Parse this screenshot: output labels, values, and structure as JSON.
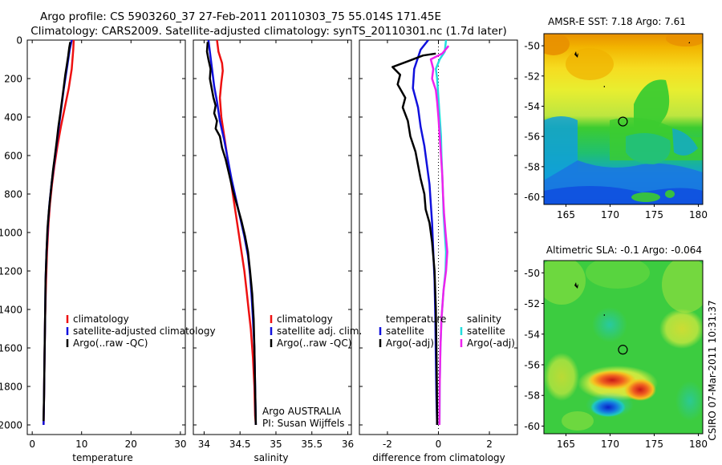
{
  "header": {
    "line1": "Argo profile: CS 5903260_37 27-Feb-2011 20110303_75 55.014S 171.45E",
    "line2": "Climatology: CARS2009. Satellite-adjusted climatology: synTS_20110301.nc (1.7d later)"
  },
  "colors": {
    "climatology": "#ee1111",
    "satellite": "#1111dd",
    "argo": "#000000",
    "sat_diff_sal": "#22dddd",
    "argo_diff_sal": "#ee22ee"
  },
  "chart_data": [
    {
      "type": "line",
      "panel": "temperature",
      "xlabel": "temperature",
      "xlim": [
        -1,
        31
      ],
      "ylim": [
        0,
        2050
      ],
      "y_reversed": true,
      "xticks": [
        "0",
        "10",
        "20",
        "30"
      ],
      "yticks": [
        "0",
        "200",
        "400",
        "600",
        "800",
        "1000",
        "1200",
        "1400",
        "1600",
        "1800",
        "2000"
      ],
      "legend": {
        "placement": "bottom-right",
        "entries": [
          "climatology",
          "satellite-adjusted climatology",
          "Argo(..raw -QC)"
        ]
      },
      "series": [
        {
          "name": "climatology",
          "color_key": "climatology",
          "points": [
            [
              8.4,
              0
            ],
            [
              8.3,
              50
            ],
            [
              8.0,
              150
            ],
            [
              7.4,
              250
            ],
            [
              6.6,
              350
            ],
            [
              5.8,
              450
            ],
            [
              5.1,
              550
            ],
            [
              4.5,
              650
            ],
            [
              4.0,
              750
            ],
            [
              3.6,
              850
            ],
            [
              3.3,
              950
            ],
            [
              3.0,
              1100
            ],
            [
              2.8,
              1250
            ],
            [
              2.6,
              1450
            ],
            [
              2.5,
              1650
            ],
            [
              2.4,
              1850
            ],
            [
              2.3,
              2000
            ]
          ]
        },
        {
          "name": "satellite-adjusted climatology",
          "color_key": "satellite",
          "points": [
            [
              8.0,
              0
            ],
            [
              7.6,
              50
            ],
            [
              7.0,
              150
            ],
            [
              6.4,
              250
            ],
            [
              5.9,
              350
            ],
            [
              5.4,
              450
            ],
            [
              4.9,
              550
            ],
            [
              4.4,
              650
            ],
            [
              3.9,
              750
            ],
            [
              3.5,
              850
            ],
            [
              3.2,
              950
            ],
            [
              2.9,
              1100
            ],
            [
              2.7,
              1250
            ],
            [
              2.6,
              1450
            ],
            [
              2.5,
              1650
            ],
            [
              2.4,
              1850
            ],
            [
              2.3,
              2000
            ]
          ]
        },
        {
          "name": "Argo(..raw -QC)",
          "color_key": "argo",
          "points": [
            [
              7.7,
              10
            ],
            [
              7.5,
              40
            ],
            [
              7.3,
              80
            ],
            [
              7.0,
              130
            ],
            [
              6.7,
              180
            ],
            [
              6.4,
              240
            ],
            [
              6.0,
              320
            ],
            [
              5.7,
              380
            ],
            [
              5.3,
              450
            ],
            [
              5.0,
              520
            ],
            [
              4.6,
              600
            ],
            [
              4.2,
              680
            ],
            [
              3.8,
              780
            ],
            [
              3.4,
              880
            ],
            [
              3.1,
              980
            ],
            [
              2.9,
              1100
            ],
            [
              2.7,
              1250
            ],
            [
              2.6,
              1450
            ],
            [
              2.5,
              1650
            ],
            [
              2.4,
              1850
            ],
            [
              2.3,
              1980
            ]
          ]
        }
      ]
    },
    {
      "type": "line",
      "panel": "salinity",
      "xlabel": "salinity",
      "xlim": [
        33.85,
        36.05
      ],
      "ylim": [
        0,
        2050
      ],
      "y_reversed": true,
      "xticks": [
        "34",
        "34.5",
        "35",
        "35.5",
        "36"
      ],
      "legend": {
        "placement": "bottom-right",
        "entries": [
          "climatology",
          "satellite adj. clim.",
          "Argo(..raw -QC)"
        ]
      },
      "annotation": {
        "line1": "Argo AUSTRALIA",
        "line2": "PI: Susan Wijffels"
      },
      "series": [
        {
          "name": "climatology",
          "color_key": "climatology",
          "points": [
            [
              34.18,
              0
            ],
            [
              34.2,
              60
            ],
            [
              34.25,
              120
            ],
            [
              34.26,
              160
            ],
            [
              34.24,
              220
            ],
            [
              34.22,
              300
            ],
            [
              34.24,
              400
            ],
            [
              34.28,
              500
            ],
            [
              34.32,
              600
            ],
            [
              34.36,
              700
            ],
            [
              34.4,
              800
            ],
            [
              34.44,
              900
            ],
            [
              34.48,
              1000
            ],
            [
              34.52,
              1100
            ],
            [
              34.56,
              1200
            ],
            [
              34.59,
              1300
            ],
            [
              34.62,
              1400
            ],
            [
              34.65,
              1500
            ],
            [
              34.68,
              1650
            ],
            [
              34.7,
              1800
            ],
            [
              34.71,
              1950
            ],
            [
              34.72,
              2000
            ]
          ]
        },
        {
          "name": "satellite adj. clim.",
          "color_key": "satellite",
          "points": [
            [
              34.06,
              0
            ],
            [
              34.08,
              60
            ],
            [
              34.1,
              120
            ],
            [
              34.12,
              180
            ],
            [
              34.14,
              240
            ],
            [
              34.18,
              320
            ],
            [
              34.22,
              420
            ],
            [
              34.28,
              520
            ],
            [
              34.33,
              620
            ],
            [
              34.38,
              720
            ],
            [
              34.44,
              820
            ],
            [
              34.5,
              920
            ],
            [
              34.56,
              1020
            ],
            [
              34.61,
              1120
            ],
            [
              34.64,
              1220
            ],
            [
              34.66,
              1320
            ],
            [
              34.68,
              1450
            ],
            [
              34.7,
              1600
            ],
            [
              34.71,
              1800
            ],
            [
              34.72,
              2000
            ]
          ]
        },
        {
          "name": "Argo(..raw -QC)",
          "color_key": "argo",
          "points": [
            [
              34.05,
              10
            ],
            [
              34.04,
              60
            ],
            [
              34.06,
              100
            ],
            [
              34.09,
              150
            ],
            [
              34.08,
              200
            ],
            [
              34.11,
              260
            ],
            [
              34.13,
              300
            ],
            [
              34.16,
              340
            ],
            [
              34.14,
              380
            ],
            [
              34.18,
              420
            ],
            [
              34.16,
              460
            ],
            [
              34.22,
              500
            ],
            [
              34.25,
              560
            ],
            [
              34.3,
              620
            ],
            [
              34.35,
              700
            ],
            [
              34.4,
              780
            ],
            [
              34.46,
              860
            ],
            [
              34.52,
              940
            ],
            [
              34.57,
              1020
            ],
            [
              34.61,
              1100
            ],
            [
              34.64,
              1200
            ],
            [
              34.67,
              1320
            ],
            [
              34.69,
              1450
            ],
            [
              34.7,
              1600
            ],
            [
              34.71,
              1800
            ],
            [
              34.72,
              2000
            ]
          ]
        }
      ]
    },
    {
      "type": "line",
      "panel": "difference",
      "xlabel": "difference from climatology",
      "xlim": [
        -3.1,
        3.1
      ],
      "ylim": [
        0,
        2050
      ],
      "y_reversed": true,
      "xticks": [
        "-2",
        "0",
        "2"
      ],
      "zero_line": true,
      "legend_temperature": {
        "title": "temperature",
        "entries": [
          "satellite",
          "Argo(-adj)"
        ]
      },
      "legend_salinity": {
        "title": "salinity",
        "entries": [
          "satellite",
          "Argo(-adj)"
        ]
      },
      "series": [
        {
          "name": "temperature satellite",
          "color_key": "satellite",
          "points": [
            [
              -0.4,
              0
            ],
            [
              -0.7,
              50
            ],
            [
              -0.95,
              150
            ],
            [
              -1.0,
              250
            ],
            [
              -0.8,
              350
            ],
            [
              -0.7,
              450
            ],
            [
              -0.55,
              550
            ],
            [
              -0.45,
              650
            ],
            [
              -0.35,
              750
            ],
            [
              -0.3,
              850
            ],
            [
              -0.25,
              950
            ],
            [
              -0.2,
              1100
            ],
            [
              -0.15,
              1250
            ],
            [
              -0.12,
              1450
            ],
            [
              -0.1,
              1650
            ],
            [
              -0.08,
              1850
            ],
            [
              -0.05,
              2000
            ]
          ]
        },
        {
          "name": "temperature Argo(-adj)",
          "color_key": "argo",
          "points": [
            [
              -0.1,
              70
            ],
            [
              -0.6,
              80
            ],
            [
              -1.2,
              110
            ],
            [
              -1.8,
              140
            ],
            [
              -1.5,
              180
            ],
            [
              -1.6,
              230
            ],
            [
              -1.3,
              300
            ],
            [
              -1.4,
              350
            ],
            [
              -1.2,
              420
            ],
            [
              -1.1,
              500
            ],
            [
              -0.9,
              580
            ],
            [
              -0.8,
              650
            ],
            [
              -0.7,
              720
            ],
            [
              -0.55,
              800
            ],
            [
              -0.5,
              880
            ],
            [
              -0.35,
              950
            ],
            [
              -0.25,
              1050
            ],
            [
              -0.15,
              1200
            ],
            [
              -0.1,
              1400
            ],
            [
              -0.08,
              1600
            ],
            [
              -0.06,
              1800
            ],
            [
              -0.05,
              2000
            ]
          ]
        },
        {
          "name": "salinity satellite",
          "color_key": "sat_diff_sal",
          "points": [
            [
              0.3,
              0
            ],
            [
              0.25,
              60
            ],
            [
              0.05,
              100
            ],
            [
              -0.1,
              150
            ],
            [
              -0.05,
              200
            ],
            [
              0.0,
              300
            ],
            [
              0.05,
              400
            ],
            [
              0.1,
              500
            ],
            [
              0.12,
              600
            ],
            [
              0.15,
              700
            ],
            [
              0.18,
              800
            ],
            [
              0.2,
              900
            ],
            [
              0.25,
              1000
            ],
            [
              0.3,
              1100
            ],
            [
              0.28,
              1200
            ],
            [
              0.2,
              1300
            ],
            [
              0.12,
              1450
            ],
            [
              0.08,
              1600
            ],
            [
              0.05,
              1800
            ],
            [
              0.04,
              2000
            ]
          ]
        },
        {
          "name": "salinity Argo(-adj)",
          "color_key": "argo_diff_sal",
          "points": [
            [
              0.4,
              30
            ],
            [
              0.15,
              70
            ],
            [
              -0.3,
              100
            ],
            [
              -0.2,
              150
            ],
            [
              -0.25,
              200
            ],
            [
              -0.1,
              260
            ],
            [
              -0.05,
              320
            ],
            [
              0.0,
              400
            ],
            [
              0.05,
              500
            ],
            [
              0.1,
              600
            ],
            [
              0.15,
              700
            ],
            [
              0.18,
              800
            ],
            [
              0.22,
              900
            ],
            [
              0.28,
              1000
            ],
            [
              0.35,
              1100
            ],
            [
              0.3,
              1200
            ],
            [
              0.2,
              1300
            ],
            [
              0.12,
              1450
            ],
            [
              0.08,
              1600
            ],
            [
              0.05,
              1800
            ],
            [
              0.04,
              2000
            ]
          ]
        }
      ]
    },
    {
      "type": "heatmap",
      "panel": "sst-map",
      "title": "AMSR-E SST: 7.18 Argo: 7.61",
      "xlim": [
        162.5,
        180.5
      ],
      "ylim": [
        -60.5,
        -49.2
      ],
      "xticks": [
        "165",
        "170",
        "175",
        "180"
      ],
      "yticks": [
        "-50",
        "-52",
        "-54",
        "-56",
        "-58",
        "-60"
      ],
      "marker": {
        "lon": 171.45,
        "lat": -55.014
      }
    },
    {
      "type": "heatmap",
      "panel": "sla-map",
      "title": "Altimetric SLA: -0.1 Argo: -0.064",
      "xlim": [
        162.5,
        180.5
      ],
      "ylim": [
        -60.5,
        -49.2
      ],
      "xticks": [
        "165",
        "170",
        "175",
        "180"
      ],
      "yticks": [
        "-50",
        "-52",
        "-54",
        "-56",
        "-58",
        "-60"
      ],
      "marker": {
        "lon": 171.45,
        "lat": -55.014
      }
    }
  ],
  "footer": {
    "stamp": "CSIRO 07-Mar-2011 10:31:37"
  }
}
